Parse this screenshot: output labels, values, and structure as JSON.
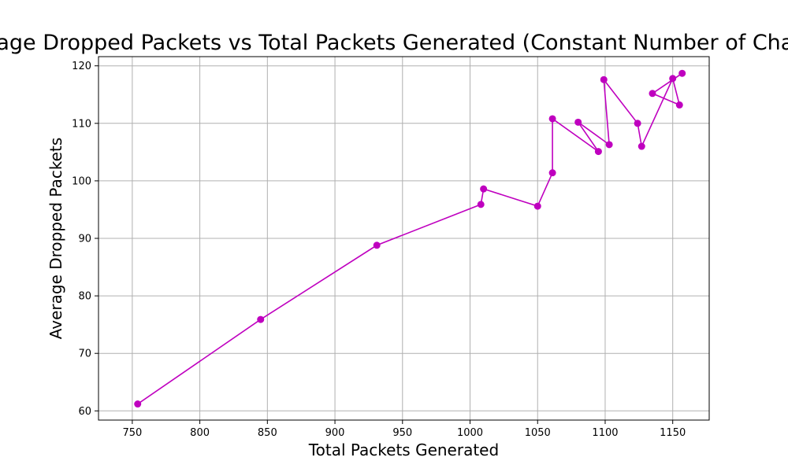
{
  "chart_data": {
    "type": "line",
    "title": "Average Dropped Packets vs Total Packets Generated (Constant Number of Channels)",
    "xlabel": "Total Packets Generated",
    "ylabel": "Average Dropped Packets",
    "xlim": [
      725,
      1177
    ],
    "ylim": [
      58.4,
      121.6
    ],
    "xticks": [
      750,
      800,
      850,
      900,
      950,
      1000,
      1050,
      1100,
      1150
    ],
    "yticks": [
      60,
      70,
      80,
      90,
      100,
      110,
      120
    ],
    "grid": true,
    "color": "#bf00bf",
    "marker": "circle",
    "x": [
      754,
      845,
      931,
      1008,
      1010,
      1050,
      1061,
      1061,
      1095,
      1080,
      1103,
      1099,
      1124,
      1127,
      1150,
      1155,
      1135,
      1157
    ],
    "y": [
      61.2,
      75.9,
      88.8,
      95.9,
      98.6,
      95.6,
      101.4,
      110.8,
      105.1,
      110.2,
      106.3,
      117.6,
      110.0,
      106.0,
      117.8,
      113.2,
      115.2,
      118.7
    ]
  }
}
